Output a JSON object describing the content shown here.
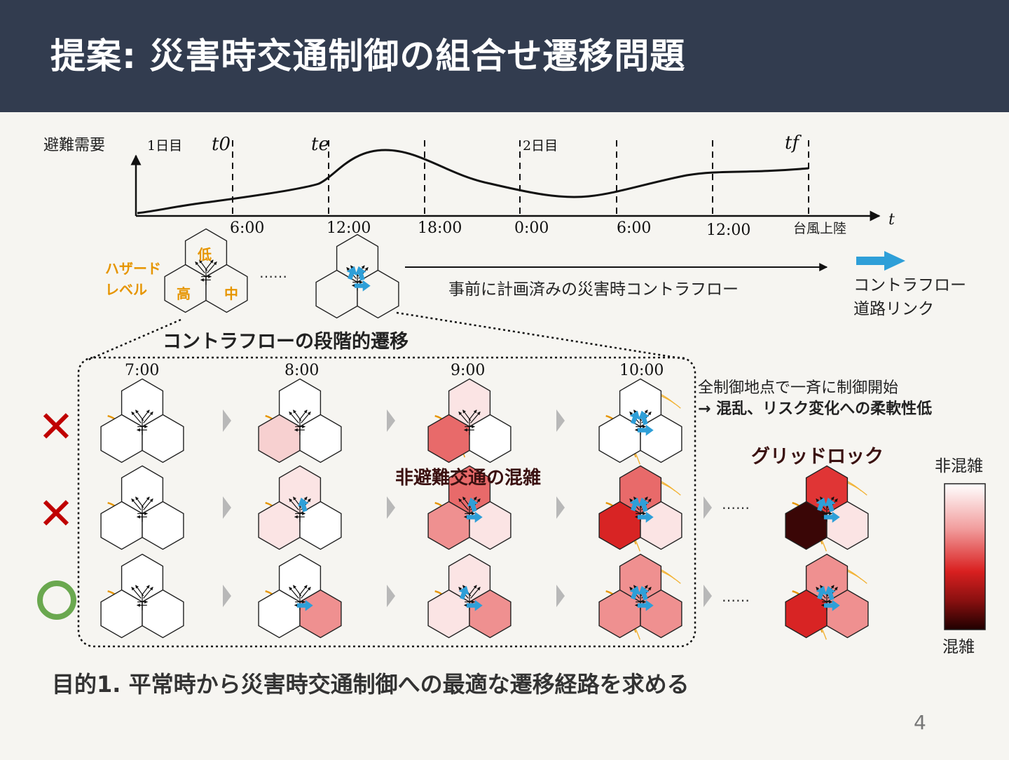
{
  "slide": {
    "title": "提案: 災害時交通制御の組合せ遷移問題",
    "page_number": "4",
    "objective": "目的1. 平常時から災害時交通制御への最適な遷移経路を求める"
  },
  "timeline": {
    "ylabel": "避難需要",
    "xlabel": "t",
    "day1": "1日目",
    "day2": "2日目",
    "markers": [
      "t0",
      "te",
      "tf"
    ],
    "times": [
      "6:00",
      "12:00",
      "18:00",
      "0:00",
      "6:00",
      "12:00"
    ],
    "landfall": "台風上陸"
  },
  "hazard": {
    "label_line1": "ハザード",
    "label_line2": "レベル",
    "low": "低",
    "high": "高",
    "mid": "中",
    "ellipsis": "……"
  },
  "planned_flow": "事前に計画済みの災害時コントラフロー",
  "legend_arrow": {
    "line1": "コントラフロー",
    "line2": "道路リンク"
  },
  "staged_title": "コントラフローの段階的遷移",
  "stage_times": [
    "7:00",
    "8:00",
    "9:00",
    "10:00"
  ],
  "rows": [
    {
      "mark": "✕",
      "mark_color": "#c00000"
    },
    {
      "mark": "✕",
      "mark_color": "#c00000"
    },
    {
      "mark": "○",
      "mark_color": "#6aa84f"
    }
  ],
  "annotations": {
    "simultaneous_line1": "全制御地点で一斉に制御開始",
    "simultaneous_line2": "→ 混乱、リスク変化への柔軟性低",
    "non_evac": "非避難交通の混雑",
    "gridlock": "グリッドロック",
    "ellipsis": "……"
  },
  "colorbar": {
    "top": "非混雑",
    "bottom": "混雑"
  },
  "colors": {
    "header": "#323c4f",
    "flow_arrow": "#2e9fd8",
    "hazard_text": "#e69500",
    "dark_text": "#3a1010"
  }
}
